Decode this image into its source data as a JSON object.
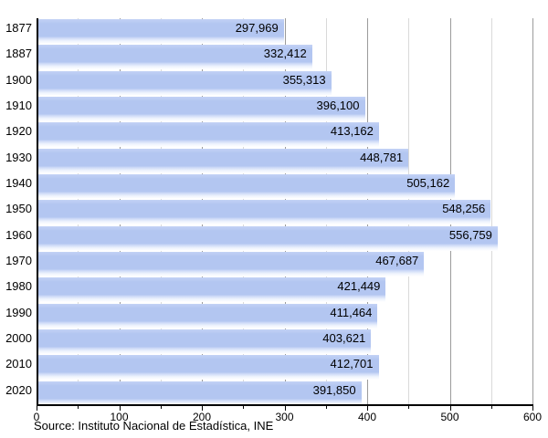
{
  "chart_data": {
    "type": "bar",
    "orientation": "horizontal",
    "title": "",
    "xlabel": "",
    "ylabel": "",
    "categories": [
      "1877",
      "1887",
      "1900",
      "1910",
      "1920",
      "1930",
      "1940",
      "1950",
      "1960",
      "1970",
      "1980",
      "1990",
      "2000",
      "2010",
      "2020"
    ],
    "values": [
      297969,
      332412,
      355313,
      396100,
      413162,
      448781,
      505162,
      548256,
      556759,
      467687,
      421449,
      411464,
      403621,
      412701,
      391850
    ],
    "value_labels": [
      "297,969",
      "332,412",
      "355,313",
      "396,100",
      "413,162",
      "448,781",
      "505,162",
      "548,256",
      "556,759",
      "467,687",
      "421,449",
      "411,464",
      "403,621",
      "412,701",
      "391,850"
    ],
    "x_axis": {
      "min": 0,
      "max": 600000,
      "unit": "thousands",
      "major_tick_values": [
        0,
        100000,
        200000,
        300000,
        400000,
        500000,
        600000
      ],
      "major_tick_labels": [
        "0",
        "100",
        "200",
        "300",
        "400",
        "500",
        "600"
      ],
      "minor_tick_step": 50000
    },
    "grid": "vertical, every 50k; darker lines at 100k multiples",
    "legend": "none",
    "source": "Source: Instituto Nacional de Estadística, INE",
    "colors": {
      "bar": "#b3c6f1",
      "bar_fade": "#ccd9f7",
      "grid_major": "#9b9b9b",
      "grid_minor": "#d9d9d9",
      "axis": "#000000",
      "text": "#000000",
      "background": "#ffffff"
    }
  }
}
